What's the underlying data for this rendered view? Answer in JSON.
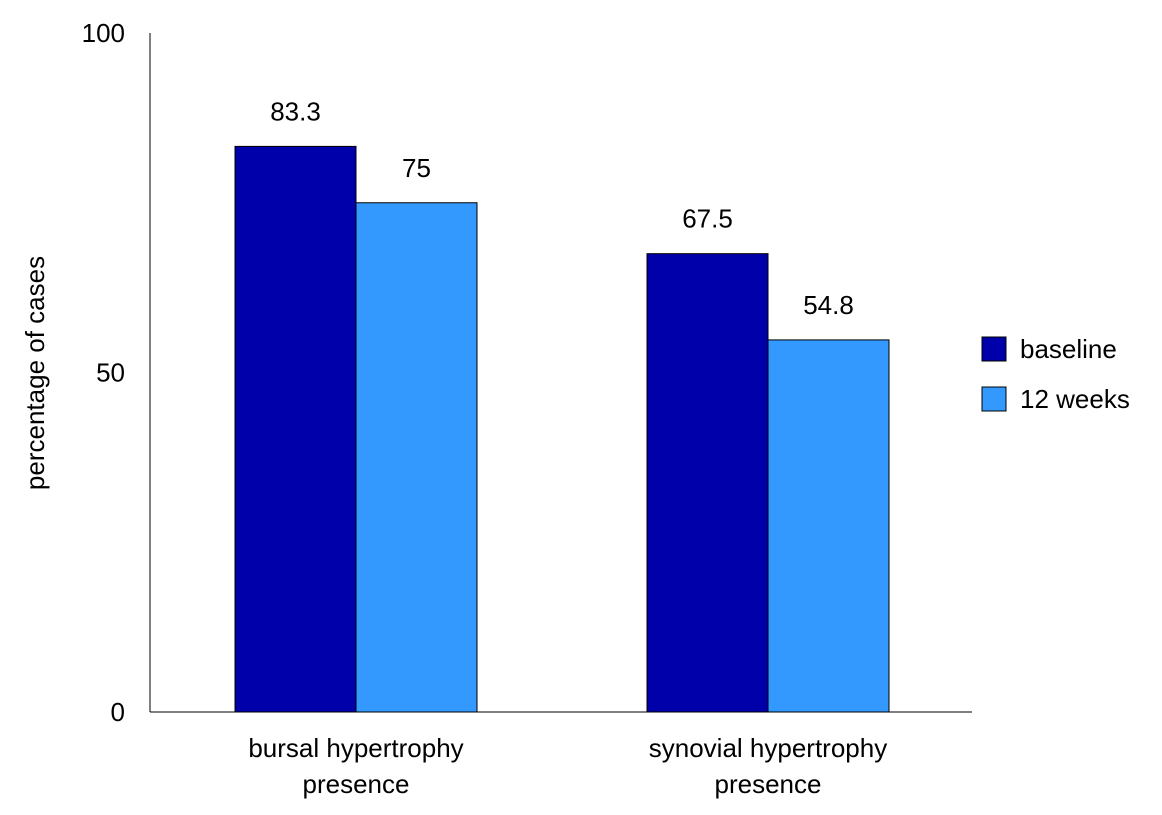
{
  "chart_data": {
    "type": "bar",
    "title": "",
    "xlabel": "",
    "ylabel": "percentage of cases",
    "ylim": [
      0,
      100
    ],
    "yticks": [
      0,
      50,
      100
    ],
    "grid": false,
    "legend_position": "right",
    "categories": [
      [
        "bursal hypertrophy",
        "presence"
      ],
      [
        "synovial hypertrophy",
        "presence"
      ]
    ],
    "series": [
      {
        "name": "baseline",
        "color": "#0000AA",
        "values": [
          83.3,
          67.5
        ]
      },
      {
        "name": "12 weeks",
        "color": "#3399FF",
        "values": [
          75,
          54.8
        ]
      }
    ]
  }
}
